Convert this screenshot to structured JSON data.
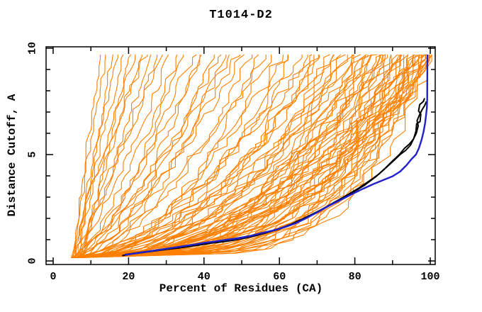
{
  "chart_data": {
    "type": "line",
    "title": "T1014-D2",
    "xlabel": "Percent of Residues (CA)",
    "ylabel": "Distance Cutoff, A",
    "xlim": [
      0,
      100
    ],
    "ylim": [
      0,
      10
    ],
    "x_major_ticks": [
      0,
      20,
      40,
      60,
      80,
      100
    ],
    "x_minor_ticks": [
      10,
      30,
      50,
      70,
      90
    ],
    "y_major_ticks": [
      0,
      5,
      10
    ],
    "y_minor_ticks": [
      1,
      2,
      3,
      4,
      6,
      7,
      8,
      9
    ],
    "grid": false,
    "legend_position": "none",
    "curve_y_start": 0.15,
    "curve_y_end": 9.7,
    "colors": {
      "background_curve": "#ff8000",
      "highlight_blue": "#2222cc",
      "highlight_black": "#000000",
      "axis": "#000000",
      "background": "#ffffff"
    },
    "series": [
      {
        "name": "highlighted-model-curve-black-1",
        "color": "#000000",
        "width": 2,
        "points": [
          [
            18.3,
            0.25
          ],
          [
            21,
            0.33
          ],
          [
            24,
            0.4
          ],
          [
            27,
            0.47
          ],
          [
            30,
            0.54
          ],
          [
            33,
            0.6
          ],
          [
            36,
            0.68
          ],
          [
            39,
            0.76
          ],
          [
            42,
            0.84
          ],
          [
            45,
            0.9
          ],
          [
            48,
            0.98
          ],
          [
            51,
            1.08
          ],
          [
            54,
            1.2
          ],
          [
            57,
            1.35
          ],
          [
            60,
            1.5
          ],
          [
            63,
            1.68
          ],
          [
            66,
            1.92
          ],
          [
            69,
            2.2
          ],
          [
            72,
            2.5
          ],
          [
            75,
            2.8
          ],
          [
            78,
            3.1
          ],
          [
            81,
            3.42
          ],
          [
            84,
            3.78
          ],
          [
            86.5,
            4.1
          ],
          [
            88.5,
            4.42
          ],
          [
            90.5,
            4.75
          ],
          [
            92,
            5.0
          ],
          [
            93.5,
            5.2
          ],
          [
            94.8,
            5.45
          ],
          [
            95.6,
            5.75
          ],
          [
            96.2,
            6.1
          ],
          [
            96.4,
            6.45
          ],
          [
            97.3,
            6.55
          ],
          [
            97.5,
            6.9
          ],
          [
            96.9,
            7.05
          ],
          [
            97.2,
            7.35
          ],
          [
            98.2,
            7.5
          ],
          [
            98.5,
            7.65
          ]
        ]
      },
      {
        "name": "highlighted-model-curve-black-2",
        "color": "#000000",
        "width": 2,
        "points": [
          [
            19,
            0.3
          ],
          [
            23,
            0.4
          ],
          [
            27,
            0.5
          ],
          [
            31,
            0.6
          ],
          [
            35,
            0.7
          ],
          [
            39,
            0.8
          ],
          [
            43,
            0.9
          ],
          [
            47,
            1.02
          ],
          [
            51,
            1.14
          ],
          [
            55,
            1.28
          ],
          [
            59,
            1.46
          ],
          [
            63,
            1.72
          ],
          [
            67,
            2.05
          ],
          [
            71,
            2.4
          ],
          [
            75,
            2.78
          ],
          [
            79,
            3.18
          ],
          [
            82.5,
            3.55
          ],
          [
            85.5,
            3.95
          ],
          [
            88,
            4.35
          ],
          [
            90,
            4.7
          ],
          [
            91.8,
            5.0
          ],
          [
            93.2,
            5.3
          ],
          [
            94.5,
            5.5
          ],
          [
            95.5,
            5.72
          ],
          [
            96.3,
            6.0
          ],
          [
            96.8,
            6.35
          ],
          [
            96.5,
            6.6
          ],
          [
            97.1,
            6.85
          ],
          [
            97.8,
            7.1
          ],
          [
            98.5,
            7.3
          ],
          [
            99.0,
            7.5
          ]
        ]
      },
      {
        "name": "highlighted-model-curve-blue",
        "color": "#2222cc",
        "width": 2.4,
        "points": [
          [
            19,
            0.28
          ],
          [
            22,
            0.36
          ],
          [
            25,
            0.44
          ],
          [
            28,
            0.52
          ],
          [
            31,
            0.6
          ],
          [
            34,
            0.68
          ],
          [
            37,
            0.76
          ],
          [
            40,
            0.85
          ],
          [
            43,
            0.92
          ],
          [
            46,
            1.0
          ],
          [
            49,
            1.06
          ],
          [
            52,
            1.16
          ],
          [
            55,
            1.3
          ],
          [
            58,
            1.42
          ],
          [
            61,
            1.57
          ],
          [
            64,
            1.75
          ],
          [
            67,
            2.0
          ],
          [
            70,
            2.28
          ],
          [
            73,
            2.58
          ],
          [
            76,
            2.85
          ],
          [
            79,
            3.12
          ],
          [
            82,
            3.38
          ],
          [
            85,
            3.62
          ],
          [
            87.5,
            3.8
          ],
          [
            90,
            3.98
          ],
          [
            92,
            4.2
          ],
          [
            93.7,
            4.5
          ],
          [
            95,
            4.78
          ],
          [
            96.2,
            5.0
          ],
          [
            97,
            5.3
          ],
          [
            97.7,
            5.7
          ],
          [
            98.2,
            6.05
          ],
          [
            98.6,
            6.45
          ],
          [
            98.9,
            6.85
          ],
          [
            99.1,
            7.2
          ],
          [
            99.2,
            7.6
          ],
          [
            99.25,
            9.7
          ]
        ]
      }
    ],
    "background_curves": {
      "param_format": [
        "x_at_bottom",
        "x_at_top",
        "shape_exponent"
      ],
      "params": [
        [
          5.0,
          12.5,
          1.0
        ],
        [
          5.5,
          14,
          1.15
        ],
        [
          6.0,
          15.5,
          0.9
        ],
        [
          6.5,
          17,
          1.25
        ],
        [
          5.2,
          18.5,
          1.0
        ],
        [
          7.0,
          20,
          0.85
        ],
        [
          5.8,
          21.5,
          1.1
        ],
        [
          6.3,
          23,
          0.95
        ],
        [
          4.8,
          24.5,
          1.2
        ],
        [
          6.8,
          26,
          1.0
        ],
        [
          5.4,
          27.5,
          0.9
        ],
        [
          7.2,
          29,
          1.1
        ],
        [
          5.1,
          31,
          0.8
        ],
        [
          6.1,
          33,
          0.65
        ],
        [
          6.9,
          35,
          0.9
        ],
        [
          4.9,
          37,
          0.7
        ],
        [
          5.7,
          38.5,
          0.6
        ],
        [
          6.4,
          40,
          0.85
        ],
        [
          7.1,
          42,
          0.6
        ],
        [
          5.3,
          44,
          0.75
        ],
        [
          6.0,
          45.5,
          0.55
        ],
        [
          6.6,
          47,
          0.8
        ],
        [
          4.7,
          48.5,
          0.65
        ],
        [
          5.9,
          50,
          0.7
        ],
        [
          5.2,
          52,
          0.55
        ],
        [
          6.2,
          54,
          0.45
        ],
        [
          7.0,
          56,
          0.65
        ],
        [
          4.8,
          58,
          0.5
        ],
        [
          5.6,
          60,
          0.42
        ],
        [
          6.5,
          61.5,
          0.6
        ],
        [
          5.0,
          63,
          0.48
        ],
        [
          6.8,
          65,
          0.55
        ],
        [
          5.4,
          66.5,
          0.4
        ],
        [
          6.1,
          68,
          0.62
        ],
        [
          4.9,
          69.5,
          0.45
        ],
        [
          5.8,
          70.5,
          0.52
        ],
        [
          5.1,
          71.5,
          0.5
        ],
        [
          6.3,
          72.5,
          0.38
        ],
        [
          5.7,
          73.5,
          0.55
        ],
        [
          6.9,
          74.5,
          0.42
        ],
        [
          4.8,
          75.5,
          0.3
        ],
        [
          5.3,
          76.5,
          0.5
        ],
        [
          6.6,
          77.5,
          0.35
        ],
        [
          5.9,
          78.5,
          0.45
        ],
        [
          5.0,
          79.5,
          0.55
        ],
        [
          6.2,
          80.5,
          0.33
        ],
        [
          6.8,
          81,
          0.48
        ],
        [
          5.5,
          81.8,
          0.38
        ],
        [
          4.9,
          82.5,
          0.52
        ],
        [
          6.0,
          83.2,
          0.3
        ],
        [
          5.2,
          83.8,
          0.44
        ],
        [
          6.5,
          84.3,
          0.36
        ],
        [
          5.6,
          84.8,
          0.5
        ],
        [
          7.0,
          85.2,
          0.4
        ],
        [
          5.0,
          85.8,
          0.35
        ],
        [
          6.1,
          86.3,
          0.22
        ],
        [
          5.5,
          86.8,
          0.45
        ],
        [
          6.7,
          87.3,
          0.3
        ],
        [
          4.9,
          87.8,
          0.4
        ],
        [
          5.8,
          88.3,
          0.2
        ],
        [
          6.3,
          88.8,
          0.35
        ],
        [
          5.2,
          89.3,
          0.48
        ],
        [
          6.9,
          89.8,
          0.25
        ],
        [
          5.4,
          90.3,
          0.4
        ],
        [
          6.0,
          90.8,
          0.3
        ],
        [
          5.1,
          91.3,
          0.45
        ],
        [
          6.5,
          91.8,
          0.22
        ],
        [
          5.7,
          92.3,
          0.35
        ],
        [
          4.8,
          92.8,
          0.28
        ],
        [
          6.2,
          93.2,
          0.42
        ],
        [
          5.3,
          93.6,
          0.2
        ],
        [
          6.8,
          94,
          0.33
        ],
        [
          5.5,
          94.4,
          0.45
        ],
        [
          5.9,
          94.8,
          0.25
        ],
        [
          5.0,
          95.2,
          0.38
        ],
        [
          6.4,
          95.6,
          0.3
        ],
        [
          5.6,
          96,
          0.22
        ],
        [
          6.0,
          96.3,
          0.42
        ],
        [
          5.2,
          96.6,
          0.33
        ],
        [
          6.6,
          96.9,
          0.26
        ],
        [
          5.4,
          97.2,
          0.38
        ],
        [
          5.8,
          97.5,
          0.2
        ],
        [
          5.1,
          97.8,
          0.32
        ],
        [
          6.3,
          98.1,
          0.44
        ],
        [
          5.7,
          98.3,
          0.27
        ],
        [
          4.9,
          98.5,
          0.36
        ],
        [
          6.1,
          98.7,
          0.22
        ],
        [
          5.5,
          98.9,
          0.4
        ],
        [
          5.3,
          99.1,
          0.3
        ],
        [
          6.5,
          99.3,
          0.24
        ],
        [
          5.9,
          99.45,
          0.34
        ],
        [
          5.0,
          99.55,
          0.28
        ],
        [
          5.6,
          99.65,
          0.38
        ],
        [
          6.2,
          99.75,
          0.2
        ]
      ]
    }
  }
}
